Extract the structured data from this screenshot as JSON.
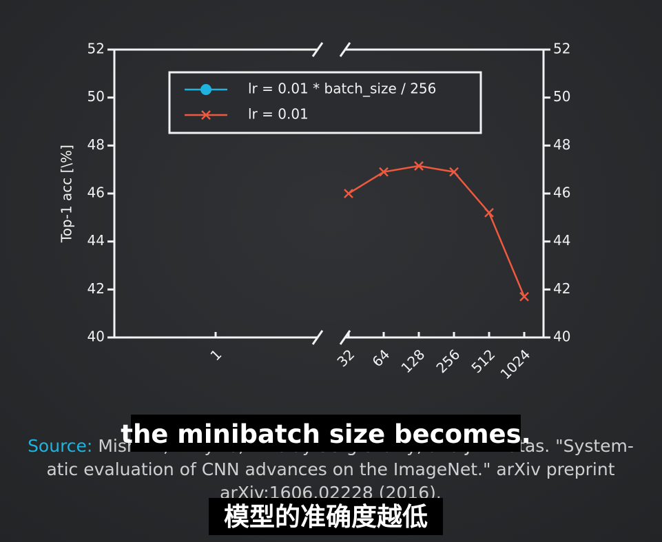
{
  "chart_data": {
    "type": "line",
    "y_label": "Top-1 acc [\\%]",
    "categories": [
      "1",
      "32",
      "64",
      "128",
      "256",
      "512",
      "1024"
    ],
    "series": [
      {
        "name": "lr = 0.01 * batch_size / 256",
        "color": "#1fb4e0",
        "marker": "circle",
        "values": [
          null,
          null,
          null,
          null,
          null,
          null,
          null
        ]
      },
      {
        "name": "lr = 0.01",
        "color": "#ee5a3f",
        "marker": "x",
        "values": [
          null,
          46.0,
          46.9,
          47.15,
          46.9,
          45.2,
          41.7
        ]
      }
    ],
    "ylim": [
      40,
      52
    ],
    "yticks": [
      40,
      42,
      44,
      46,
      48,
      50,
      52
    ],
    "y2lim": [
      40,
      52
    ],
    "y2ticks": [
      40,
      42,
      44,
      46,
      48,
      50,
      52
    ],
    "legend": "upper left",
    "grid": false
  },
  "source": {
    "label": "Source:",
    "lines": [
      "Mishkin, Dmytro, Nikolay Sergievskiy, and Jiri Matas. \"System-",
      "atic evaluation of CNN advances on the ImageNet.\" arXiv preprint",
      "arXiv:1606.02228 (2016)."
    ]
  },
  "subtitles": [
    "the minibatch size becomes.",
    "模型的准确度越低"
  ]
}
